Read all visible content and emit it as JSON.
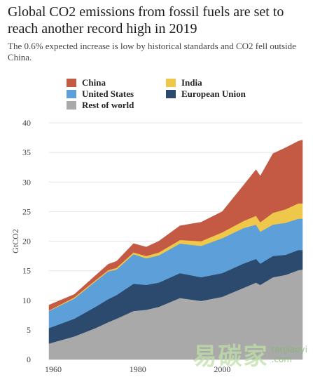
{
  "header": {
    "title": "Global CO2 emissions from fossil fuels are set to reach another record high in 2019",
    "subtitle": "The 0.6% expected increase is low by historical standards and CO2 fell outside China."
  },
  "watermark": {
    "chinese": "易碳家",
    "latin_top": "tanjiaoyi",
    "latin_bottom": ".com"
  },
  "chart_data": {
    "type": "area",
    "stacked": true,
    "title": "Global CO2 emissions from fossil fuels are set to reach another record high in 2019",
    "subtitle": "The 0.6% expected increase is low by historical standards and CO2 fell outside China.",
    "xlabel": "",
    "ylabel": "GtCO2",
    "xlim": [
      1959,
      2019
    ],
    "ylim": [
      0,
      40
    ],
    "x_ticks": [
      "1960",
      "1980",
      "2000"
    ],
    "y_ticks": [
      "0",
      "5",
      "10",
      "15",
      "20",
      "25",
      "30",
      "35",
      "40"
    ],
    "grid": "horizontal",
    "legend_position": "top",
    "x": [
      1959,
      1965,
      1970,
      1973,
      1975,
      1979,
      1982,
      1985,
      1990,
      1995,
      2000,
      2005,
      2008,
      2009,
      2012,
      2015,
      2018,
      2019
    ],
    "series": [
      {
        "name": "Rest of world",
        "color": "#a9a9a9",
        "values": [
          2.7,
          3.9,
          5.3,
          6.3,
          6.9,
          8.2,
          8.4,
          8.9,
          10.4,
          9.9,
          10.6,
          12.1,
          13.0,
          12.6,
          13.9,
          14.3,
          15.1,
          15.2
        ]
      },
      {
        "name": "European Union",
        "color": "#2c4a6e",
        "values": [
          2.6,
          3.0,
          3.6,
          3.9,
          4.0,
          4.6,
          4.2,
          4.1,
          4.2,
          4.0,
          4.0,
          4.1,
          4.0,
          3.6,
          3.6,
          3.4,
          3.4,
          3.3
        ]
      },
      {
        "name": "United States",
        "color": "#5d9fd8",
        "values": [
          2.9,
          3.4,
          4.3,
          4.7,
          4.3,
          5.0,
          4.5,
          4.6,
          5.0,
          5.3,
          5.9,
          6.0,
          5.8,
          5.4,
          5.3,
          5.4,
          5.3,
          5.3
        ]
      },
      {
        "name": "India",
        "color": "#efc74a",
        "values": [
          0.1,
          0.2,
          0.2,
          0.2,
          0.3,
          0.3,
          0.4,
          0.5,
          0.6,
          0.8,
          1.0,
          1.2,
          1.5,
          1.6,
          2.0,
          2.3,
          2.6,
          2.6
        ]
      },
      {
        "name": "China",
        "color": "#c45a44",
        "values": [
          0.9,
          0.5,
          0.8,
          1.0,
          1.1,
          1.5,
          1.5,
          1.9,
          2.4,
          3.2,
          3.5,
          6.0,
          7.8,
          7.8,
          10.0,
          10.4,
          10.5,
          10.7
        ]
      }
    ]
  },
  "legend": {
    "items": [
      {
        "label": "China",
        "color": "#c45a44"
      },
      {
        "label": "India",
        "color": "#efc74a"
      },
      {
        "label": "United States",
        "color": "#5d9fd8"
      },
      {
        "label": "European Union",
        "color": "#2c4a6e"
      },
      {
        "label": "Rest of world",
        "color": "#a9a9a9"
      }
    ]
  }
}
